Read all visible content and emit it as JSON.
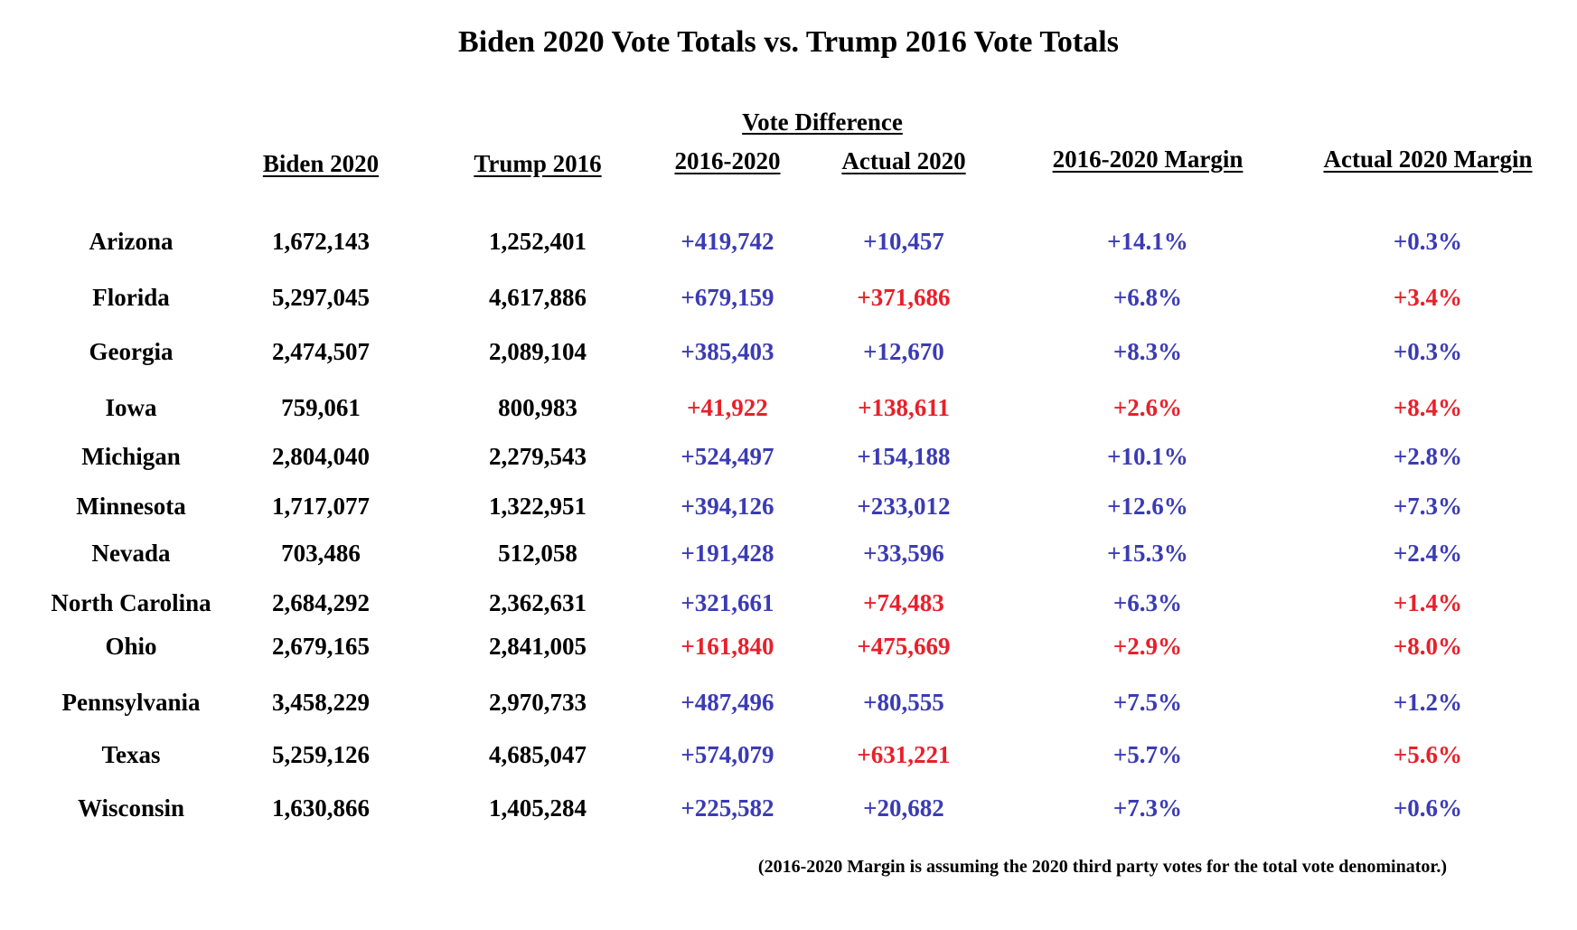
{
  "title": "Biden 2020 Vote Totals vs. Trump 2016 Vote Totals",
  "group_header": "Vote Difference",
  "headers": {
    "biden_2020": "Biden 2020",
    "trump_2016": "Trump 2016",
    "diff_2016_2020": "2016-2020",
    "actual_2020": "Actual 2020",
    "margin_2016_2020": "2016-2020 Margin",
    "actual_margin_2020": "Actual 2020 Margin"
  },
  "colors": {
    "biden": "#3b3bb5",
    "trump": "#e8202a"
  },
  "rows": [
    {
      "state": "Arizona",
      "biden": "1,672,143",
      "trump": "1,252,401",
      "diff": "+419,742",
      "diff_color": "blue",
      "actual": "+10,457",
      "actual_color": "blue",
      "margin": "+14.1%",
      "margin_color": "blue",
      "actual_margin": "+0.3%",
      "actual_margin_color": "blue"
    },
    {
      "state": "Florida",
      "biden": "5,297,045",
      "trump": "4,617,886",
      "diff": "+679,159",
      "diff_color": "blue",
      "actual": "+371,686",
      "actual_color": "red",
      "margin": "+6.8%",
      "margin_color": "blue",
      "actual_margin": "+3.4%",
      "actual_margin_color": "red"
    },
    {
      "state": "Georgia",
      "biden": "2,474,507",
      "trump": "2,089,104",
      "diff": "+385,403",
      "diff_color": "blue",
      "actual": "+12,670",
      "actual_color": "blue",
      "margin": "+8.3%",
      "margin_color": "blue",
      "actual_margin": "+0.3%",
      "actual_margin_color": "blue"
    },
    {
      "state": "Iowa",
      "biden": "759,061",
      "trump": "800,983",
      "diff": "+41,922",
      "diff_color": "red",
      "actual": "+138,611",
      "actual_color": "red",
      "margin": "+2.6%",
      "margin_color": "red",
      "actual_margin": "+8.4%",
      "actual_margin_color": "red"
    },
    {
      "state": "Michigan",
      "biden": "2,804,040",
      "trump": "2,279,543",
      "diff": "+524,497",
      "diff_color": "blue",
      "actual": "+154,188",
      "actual_color": "blue",
      "margin": "+10.1%",
      "margin_color": "blue",
      "actual_margin": "+2.8%",
      "actual_margin_color": "blue"
    },
    {
      "state": "Minnesota",
      "biden": "1,717,077",
      "trump": "1,322,951",
      "diff": "+394,126",
      "diff_color": "blue",
      "actual": "+233,012",
      "actual_color": "blue",
      "margin": "+12.6%",
      "margin_color": "blue",
      "actual_margin": "+7.3%",
      "actual_margin_color": "blue"
    },
    {
      "state": "Nevada",
      "biden": "703,486",
      "trump": "512,058",
      "diff": "+191,428",
      "diff_color": "blue",
      "actual": "+33,596",
      "actual_color": "blue",
      "margin": "+15.3%",
      "margin_color": "blue",
      "actual_margin": "+2.4%",
      "actual_margin_color": "blue"
    },
    {
      "state": "North Carolina",
      "biden": "2,684,292",
      "trump": "2,362,631",
      "diff": "+321,661",
      "diff_color": "blue",
      "actual": "+74,483",
      "actual_color": "red",
      "margin": "+6.3%",
      "margin_color": "blue",
      "actual_margin": "+1.4%",
      "actual_margin_color": "red"
    },
    {
      "state": "Ohio",
      "biden": "2,679,165",
      "trump": "2,841,005",
      "diff": "+161,840",
      "diff_color": "red",
      "actual": "+475,669",
      "actual_color": "red",
      "margin": "+2.9%",
      "margin_color": "red",
      "actual_margin": "+8.0%",
      "actual_margin_color": "red"
    },
    {
      "state": "Pennsylvania",
      "biden": "3,458,229",
      "trump": "2,970,733",
      "diff": "+487,496",
      "diff_color": "blue",
      "actual": "+80,555",
      "actual_color": "blue",
      "margin": "+7.5%",
      "margin_color": "blue",
      "actual_margin": "+1.2%",
      "actual_margin_color": "blue"
    },
    {
      "state": "Texas",
      "biden": "5,259,126",
      "trump": "4,685,047",
      "diff": "+574,079",
      "diff_color": "blue",
      "actual": "+631,221",
      "actual_color": "red",
      "margin": "+5.7%",
      "margin_color": "blue",
      "actual_margin": "+5.6%",
      "actual_margin_color": "red"
    },
    {
      "state": "Wisconsin",
      "biden": "1,630,866",
      "trump": "1,405,284",
      "diff": "+225,582",
      "diff_color": "blue",
      "actual": "+20,682",
      "actual_color": "blue",
      "margin": "+7.3%",
      "margin_color": "blue",
      "actual_margin": "+0.6%",
      "actual_margin_color": "blue"
    }
  ],
  "footnote": "(2016-2020 Margin is assuming the 2020 third party votes for the total vote denominator.)"
}
